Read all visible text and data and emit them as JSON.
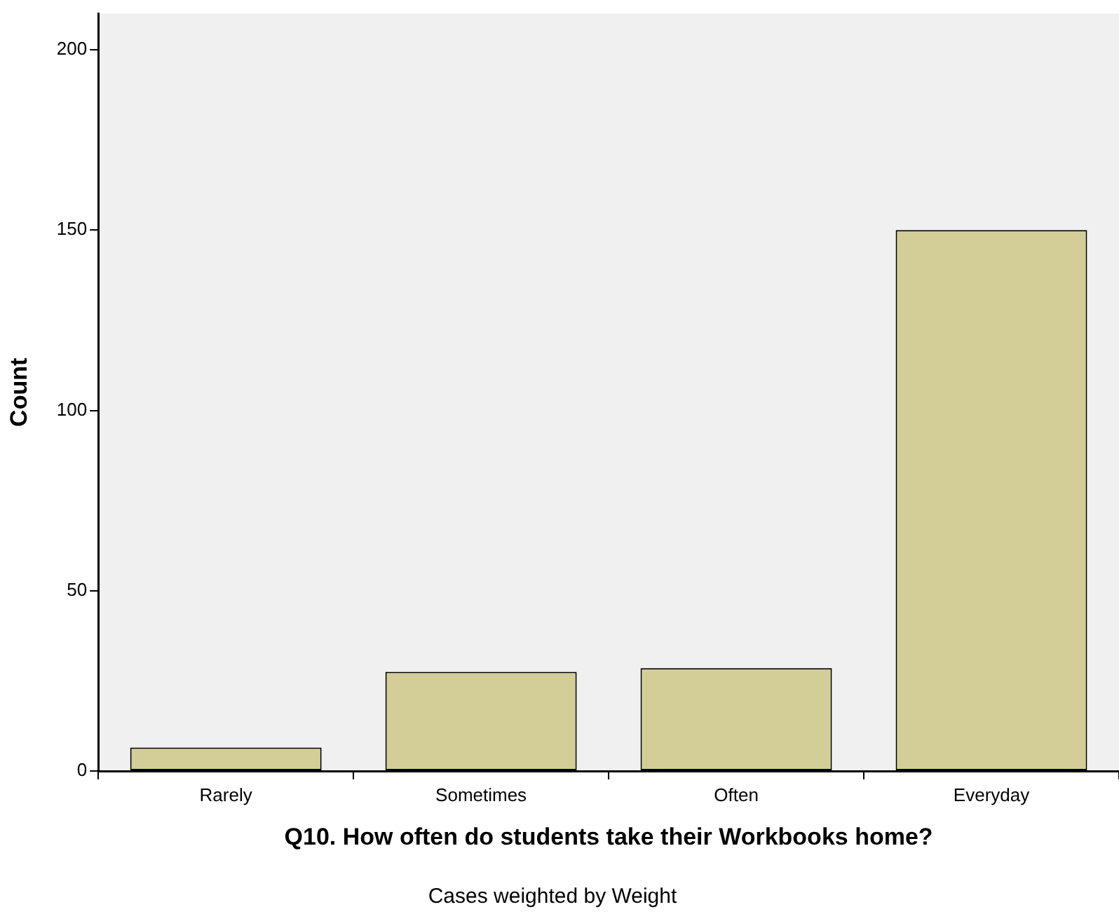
{
  "chart_data": {
    "type": "bar",
    "xlabel": "Q10. How often do students take their Workbooks home?",
    "ylabel": "Count",
    "categories": [
      "Rarely",
      "Sometimes",
      "Often",
      "Everyday"
    ],
    "values": [
      6.5,
      27.5,
      28.5,
      150
    ],
    "color": "#d3ce97",
    "ylim": [
      0,
      210
    ],
    "yticks": [
      0,
      50,
      100,
      150,
      200
    ],
    "grid": false,
    "legend": false,
    "annotations": [
      "Cases weighted by Weight"
    ]
  }
}
